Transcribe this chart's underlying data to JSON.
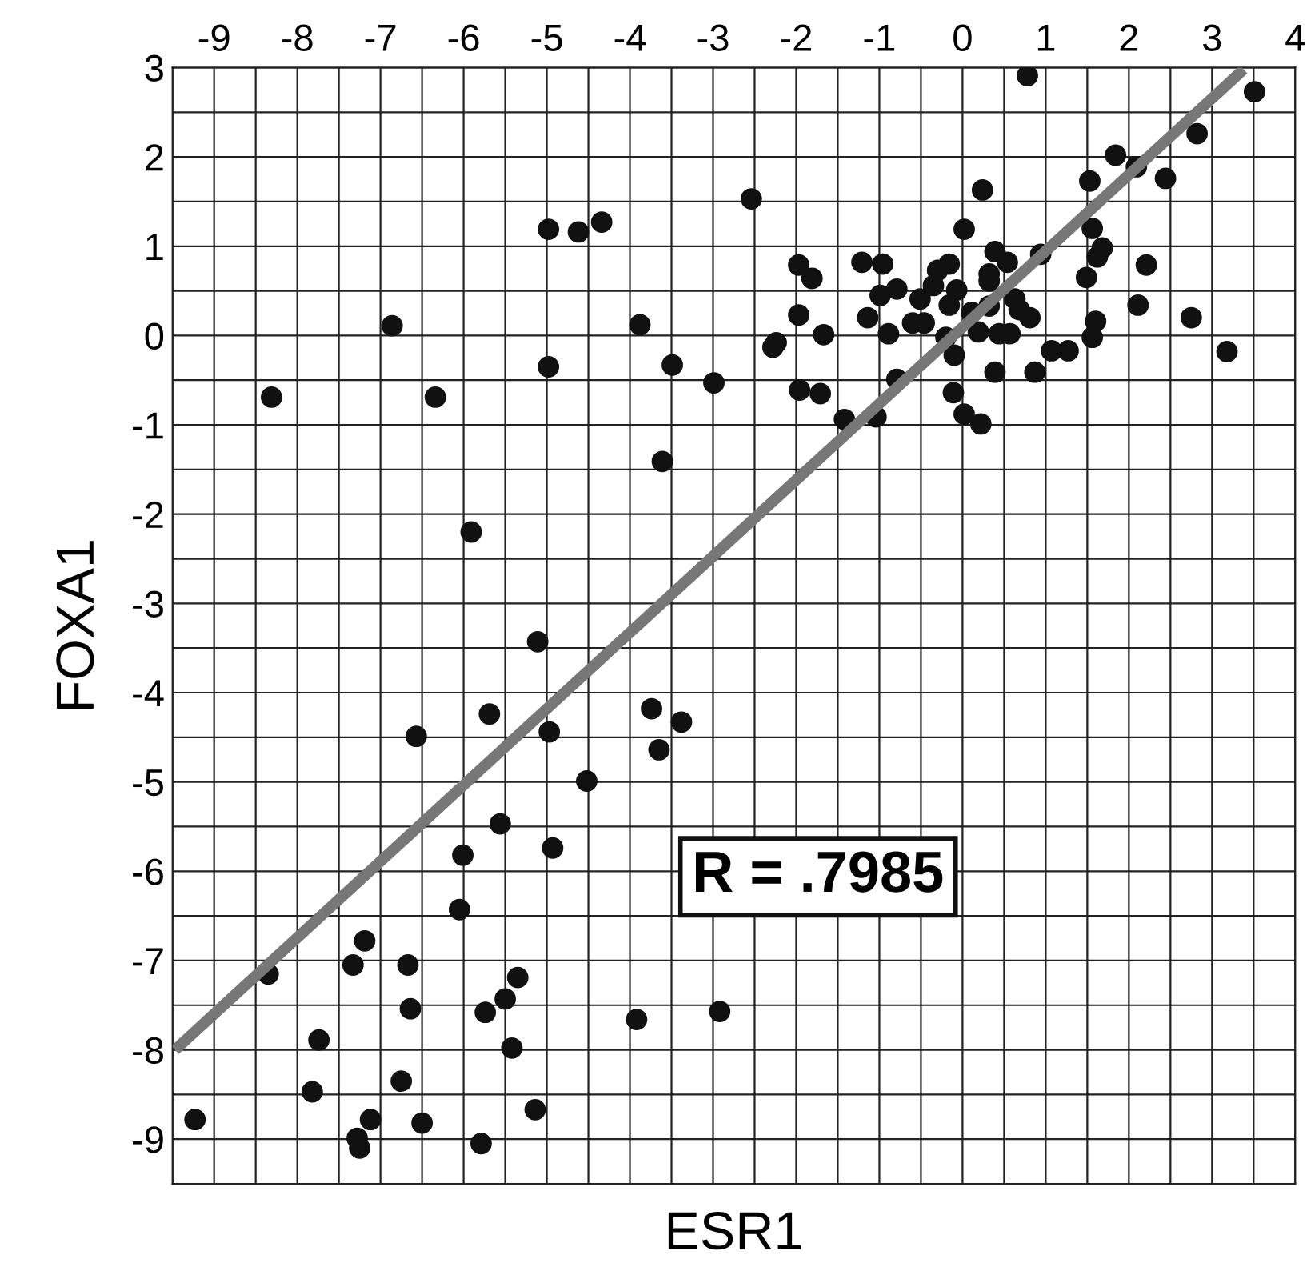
{
  "chart_data": {
    "type": "scatter",
    "xlabel": "ESR1",
    "ylabel": "FOXA1",
    "xlim": [
      -9.5,
      4
    ],
    "ylim": [
      -9.5,
      3
    ],
    "xticks": [
      -9,
      -8,
      -7,
      -6,
      -5,
      -4,
      -3,
      -2,
      -1,
      0,
      1,
      2,
      3,
      4
    ],
    "yticks": [
      -9,
      -8,
      -7,
      -6,
      -5,
      -4,
      -3,
      -2,
      -1,
      0,
      1,
      2,
      3
    ],
    "grid": true,
    "annotations": [
      "R = .7985"
    ],
    "series": [
      {
        "marker": "circle",
        "color": "#111111",
        "x": [
          0.78,
          3.51,
          2.82,
          1.84,
          2.09,
          2.44,
          1.53,
          0.24,
          -2.54,
          -4.98,
          -4.62,
          -4.34,
          0.02,
          1.56,
          1.68,
          1.62,
          0.94,
          0.39,
          0.54,
          2.21,
          -1.97,
          -1.81,
          -1.21,
          -0.96,
          -0.3,
          -0.16,
          0.32,
          0.32,
          1.49,
          -0.35,
          -0.79,
          -0.99,
          -0.07,
          -0.51,
          -0.16,
          0.63,
          0.68,
          0.81,
          2.11,
          0.11,
          0.32,
          2.75,
          -1.97,
          -1.14,
          -0.6,
          -0.46,
          1.6,
          -3.88,
          -6.86,
          -0.2,
          -0.89,
          -1.67,
          0.19,
          0.44,
          0.57,
          1.56,
          -2.24,
          -2.28,
          1.07,
          1.27,
          3.18,
          -0.1,
          -4.98,
          -3.49,
          0.39,
          0.87,
          -0.79,
          -2.99,
          -1.96,
          -1.71,
          -8.31,
          -6.34,
          -0.11,
          0.02,
          0.22,
          -1.42,
          -1.04,
          -3.61,
          -5.91,
          -5.11,
          -5.69,
          -3.74,
          -3.38,
          -4.97,
          -3.65,
          -6.57,
          -4.52,
          -5.56,
          -6.01,
          -4.93,
          -6.05,
          -7.19,
          -7.33,
          -6.67,
          -8.35,
          -5.35,
          -5.5,
          -6.64,
          -5.74,
          -3.92,
          -2.92,
          -7.74,
          -5.42,
          -6.75,
          -7.82,
          -5.14,
          -9.23,
          -7.12,
          -6.5,
          -7.28,
          -7.25,
          -5.79
        ],
        "values": [
          2.91,
          2.73,
          2.26,
          2.02,
          1.89,
          1.76,
          1.73,
          1.63,
          1.53,
          1.19,
          1.16,
          1.27,
          1.19,
          1.2,
          0.98,
          0.88,
          0.91,
          0.94,
          0.82,
          0.79,
          0.79,
          0.64,
          0.82,
          0.8,
          0.73,
          0.8,
          0.69,
          0.61,
          0.65,
          0.56,
          0.52,
          0.45,
          0.51,
          0.41,
          0.34,
          0.41,
          0.29,
          0.2,
          0.34,
          0.26,
          0.33,
          0.2,
          0.23,
          0.2,
          0.14,
          0.14,
          0.16,
          0.12,
          0.11,
          -0.02,
          0.02,
          0.01,
          0.04,
          0.02,
          0.02,
          -0.02,
          -0.08,
          -0.13,
          -0.17,
          -0.17,
          -0.18,
          -0.22,
          -0.35,
          -0.33,
          -0.41,
          -0.41,
          -0.49,
          -0.53,
          -0.61,
          -0.65,
          -0.69,
          -0.69,
          -0.64,
          -0.88,
          -0.99,
          -0.94,
          -0.91,
          -1.41,
          -2.2,
          -3.43,
          -4.24,
          -4.18,
          -4.33,
          -4.44,
          -4.64,
          -4.49,
          -4.99,
          -5.47,
          -5.82,
          -5.74,
          -6.43,
          -6.78,
          -7.05,
          -7.05,
          -7.15,
          -7.19,
          -7.43,
          -7.54,
          -7.58,
          -7.66,
          -7.57,
          -7.89,
          -7.98,
          -8.35,
          -8.47,
          -8.67,
          -8.78,
          -8.78,
          -8.82,
          -8.99,
          -9.1,
          -9.05
        ]
      },
      {
        "type": "line",
        "color": "#777777",
        "x": [
          -9.47,
          3.38
        ],
        "values": [
          -8.0,
          2.98
        ]
      }
    ]
  }
}
